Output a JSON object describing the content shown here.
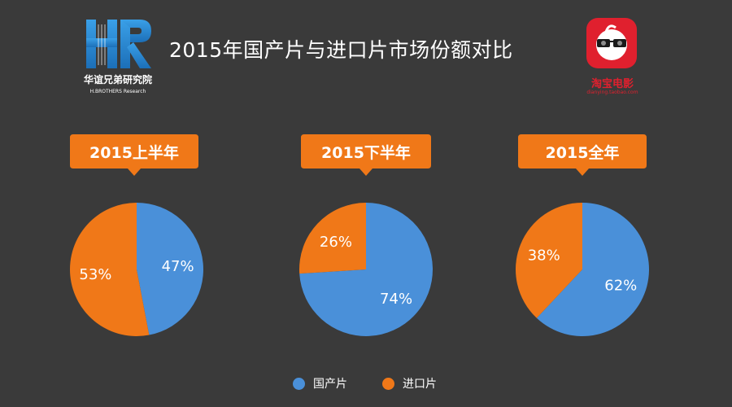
{
  "title": "2015年国产片与进口片市场份额对比",
  "logos": {
    "left_org_cn": "华谊兄弟研究院",
    "left_org_en": "H.BROTHERS  Research",
    "right_name": "淘宝电影",
    "right_url": "dianying.taobao.com"
  },
  "colors": {
    "background": "#3a3a3a",
    "domestic": "#4a90d9",
    "import": "#f07818",
    "callout": "#f07818"
  },
  "legend": [
    {
      "name": "国产片",
      "color": "#4a90d9"
    },
    {
      "name": "进口片",
      "color": "#f07818"
    }
  ],
  "chart_data": [
    {
      "type": "pie",
      "title": "2015上半年",
      "slices": [
        {
          "label": "国产片",
          "value": 47,
          "display": "47%"
        },
        {
          "label": "进口片",
          "value": 53,
          "display": "53%"
        }
      ]
    },
    {
      "type": "pie",
      "title": "2015下半年",
      "slices": [
        {
          "label": "国产片",
          "value": 74,
          "display": "74%"
        },
        {
          "label": "进口片",
          "value": 26,
          "display": "26%"
        }
      ]
    },
    {
      "type": "pie",
      "title": "2015全年",
      "slices": [
        {
          "label": "国产片",
          "value": 62,
          "display": "62%"
        },
        {
          "label": "进口片",
          "value": 38,
          "display": "38%"
        }
      ]
    }
  ]
}
